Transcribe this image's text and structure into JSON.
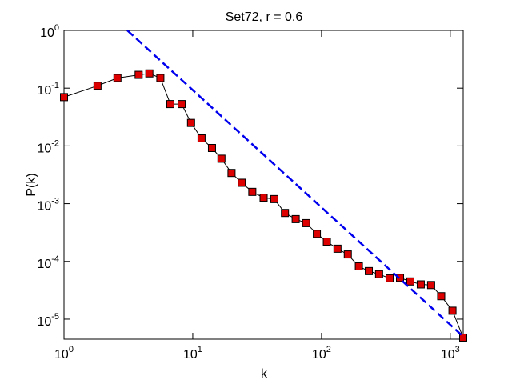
{
  "chart_data": {
    "type": "line",
    "title": "Set72, r = 0.6",
    "x_label": "k",
    "y_label": "P(k)",
    "log_x": true,
    "log_y": true,
    "grid": false,
    "xlim": [
      1,
      1260
    ],
    "ylim": [
      4.5e-06,
      1
    ],
    "xticks": [
      {
        "value": 1,
        "label": "10^0"
      },
      {
        "value": 10,
        "label": "10^1"
      },
      {
        "value": 100,
        "label": "10^2"
      },
      {
        "value": 1000,
        "label": "10^3"
      }
    ],
    "yticks": [
      {
        "value": 1e-05,
        "label": "10^-5"
      },
      {
        "value": 0.0001,
        "label": "10^-4"
      },
      {
        "value": 0.001,
        "label": "10^-3"
      },
      {
        "value": 0.01,
        "label": "10^-2"
      },
      {
        "value": 0.1,
        "label": "10^-1"
      },
      {
        "value": 1,
        "label": "10^0"
      }
    ],
    "series": [
      {
        "color": "#000000",
        "marker_color": "#dd0000",
        "x": [
          1,
          1.82,
          2.6,
          3.8,
          4.6,
          5.6,
          6.7,
          8.2,
          9.7,
          11.7,
          14.1,
          16.7,
          20,
          24,
          29,
          35.5,
          43,
          52,
          63,
          76,
          92,
          110,
          133,
          160,
          195,
          233,
          280,
          338,
          407,
          490,
          590,
          710,
          850,
          1040,
          1260
        ],
        "values": [
          0.07,
          0.11,
          0.15,
          0.17,
          0.18,
          0.15,
          0.053,
          0.053,
          0.025,
          0.0135,
          0.0092,
          0.006,
          0.0034,
          0.0023,
          0.0016,
          0.00127,
          0.0012,
          0.00069,
          0.00054,
          0.00046,
          0.0003,
          0.00022,
          0.000166,
          0.000132,
          8.2e-05,
          6.8e-05,
          6e-05,
          5.1e-05,
          5.2e-05,
          4.5e-05,
          4e-05,
          3.9e-05,
          2.5e-05,
          1.4e-05,
          4.8e-06
        ]
      },
      {
        "color": "#0000ee",
        "dashed": true,
        "x": [
          3.1,
          1260
        ],
        "values": [
          1,
          5e-06
        ]
      }
    ]
  }
}
